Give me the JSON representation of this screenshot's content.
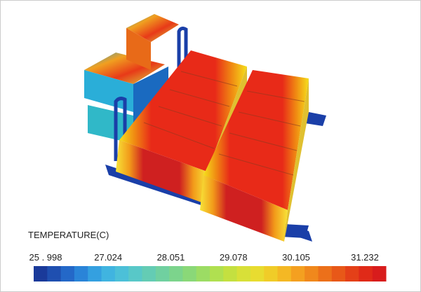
{
  "legend": {
    "title": "TEMPERATURE(C)",
    "ticks": [
      {
        "value": 25.998,
        "label": "25 . 998"
      },
      27.024,
      28.051,
      29.078,
      30.105,
      31.232
    ]
  }
}
